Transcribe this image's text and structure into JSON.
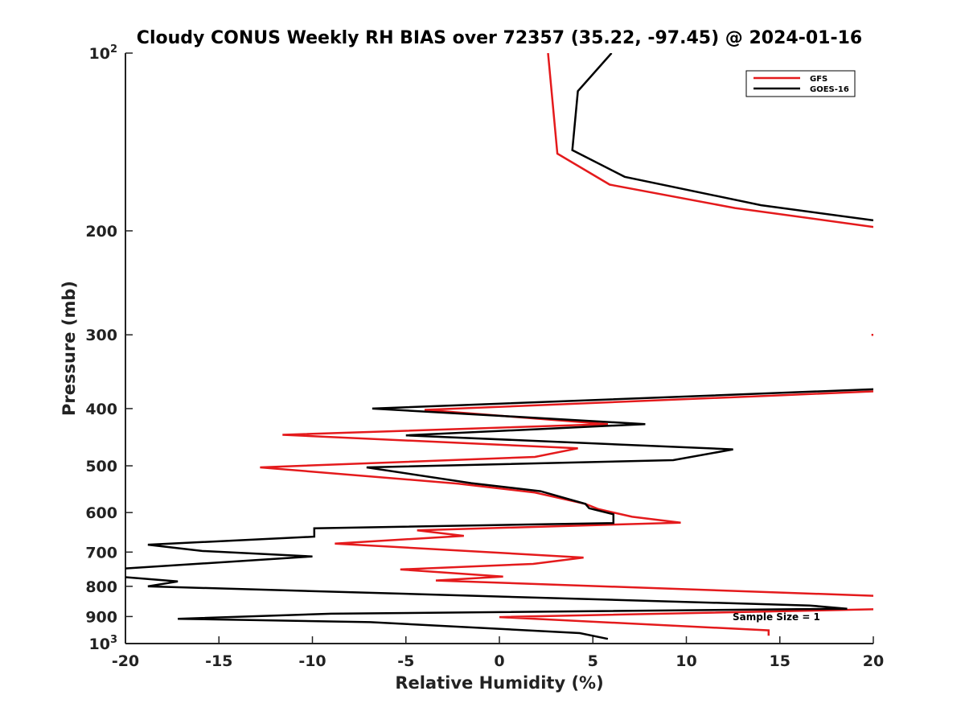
{
  "chart_data": {
    "type": "line",
    "title": "Cloudy CONUS Weekly RH BIAS over 72357 (35.22, -97.45) @ 2024-01-16",
    "xlabel": "Relative Humidity (%)",
    "ylabel": "Pressure (mb)",
    "xlim": [
      -20,
      20
    ],
    "ylim": [
      100,
      1000
    ],
    "yscale": "log",
    "y_reversed": true,
    "grid": false,
    "legend_position": "top-right",
    "x_ticks": [
      "-20",
      "-15",
      "-10",
      "-5",
      "0",
      "5",
      "10",
      "15",
      "20"
    ],
    "y_ticks": [
      {
        "value": 100,
        "label": "10",
        "sup": "2"
      },
      {
        "value": 200,
        "label": "200",
        "sup": ""
      },
      {
        "value": 300,
        "label": "300",
        "sup": ""
      },
      {
        "value": 400,
        "label": "400",
        "sup": ""
      },
      {
        "value": 500,
        "label": "500",
        "sup": ""
      },
      {
        "value": 600,
        "label": "600",
        "sup": ""
      },
      {
        "value": 700,
        "label": "700",
        "sup": ""
      },
      {
        "value": 800,
        "label": "800",
        "sup": ""
      },
      {
        "value": 900,
        "label": "900",
        "sup": ""
      },
      {
        "value": 1000,
        "label": "10",
        "sup": "3"
      }
    ],
    "annotation": "Sample Size = 1",
    "series": [
      {
        "name": "GFS",
        "color": "#e41a1c",
        "x": [
          2.6,
          3.1,
          5.9,
          12.6,
          20.0,
          null,
          19.9,
          20.0,
          null,
          20.0,
          14.8,
          -4.0,
          5.8,
          -11.6,
          4.2,
          1.9,
          -12.8,
          -2.2,
          1.9,
          4.6,
          5.3,
          7.1,
          9.7,
          -4.4,
          -1.9,
          -8.8,
          4.5,
          1.8,
          -5.3,
          0.2,
          -3.4,
          20.0,
          null,
          20.0,
          0.0,
          14.4,
          14.4
        ],
        "y": [
          100,
          148,
          167,
          183,
          197,
          null,
          300,
          300,
          null,
          374,
          380,
          402,
          425,
          443,
          467,
          483,
          503,
          536,
          555,
          580,
          592,
          610,
          624,
          643,
          657,
          677,
          715,
          733,
          749,
          770,
          782,
          830,
          null,
          875,
          902,
          950,
          970
        ]
      },
      {
        "name": "GOES-16",
        "color": "#000000",
        "x": [
          6.0,
          4.2,
          3.9,
          6.7,
          14.0,
          20.0,
          null,
          20.0,
          -6.8,
          7.8,
          -5.0,
          12.5,
          9.3,
          -7.1,
          -1.5,
          2.2,
          4.6,
          4.8,
          6.1,
          6.1,
          -9.9,
          -9.9,
          -18.8,
          -15.9,
          -10.0,
          -20.0,
          null,
          -20.0,
          -17.2,
          -18.8,
          16.6,
          18.6,
          -9.0,
          -17.2,
          -6.9,
          4.3,
          5.8
        ],
        "y": [
          100,
          116,
          146,
          162,
          181,
          192,
          null,
          371,
          400,
          425,
          444,
          469,
          489,
          503,
          535,
          552,
          580,
          590,
          604,
          625,
          638,
          659,
          680,
          697,
          712,
          746,
          null,
          772,
          785,
          800,
          862,
          873,
          890,
          908,
          920,
          960,
          982
        ]
      }
    ]
  }
}
